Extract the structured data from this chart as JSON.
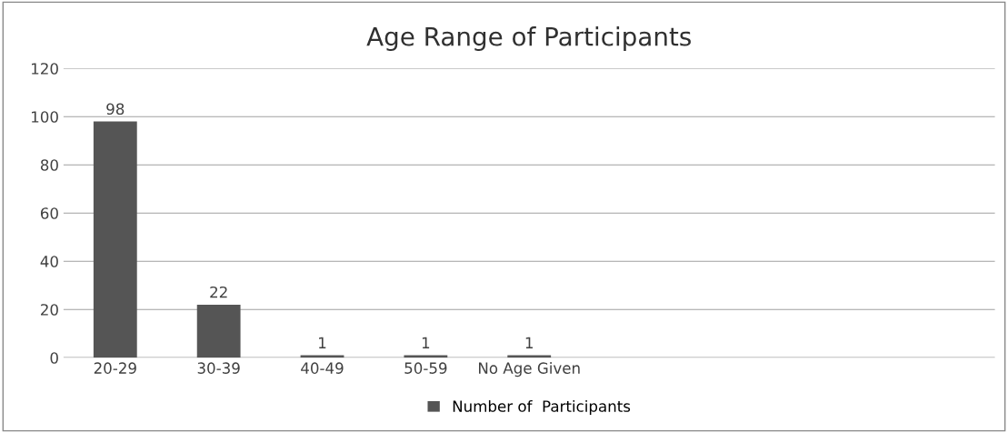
{
  "chart_data": {
    "type": "bar",
    "title": "Age Range of Participants",
    "categories": [
      "20-29",
      "30-39",
      "40-49",
      "50-59",
      "No Age Given",
      null,
      null,
      null,
      null
    ],
    "series": [
      {
        "name": "Number of  Participants",
        "color": "#555555",
        "values": [
          98,
          22,
          1,
          1,
          1,
          null,
          null,
          null,
          null
        ]
      }
    ],
    "ylim": [
      0,
      120
    ],
    "yticks": [
      0,
      20,
      40,
      60,
      80,
      100,
      120
    ],
    "grid": "y",
    "legend": "bottom",
    "data_labels": true
  }
}
